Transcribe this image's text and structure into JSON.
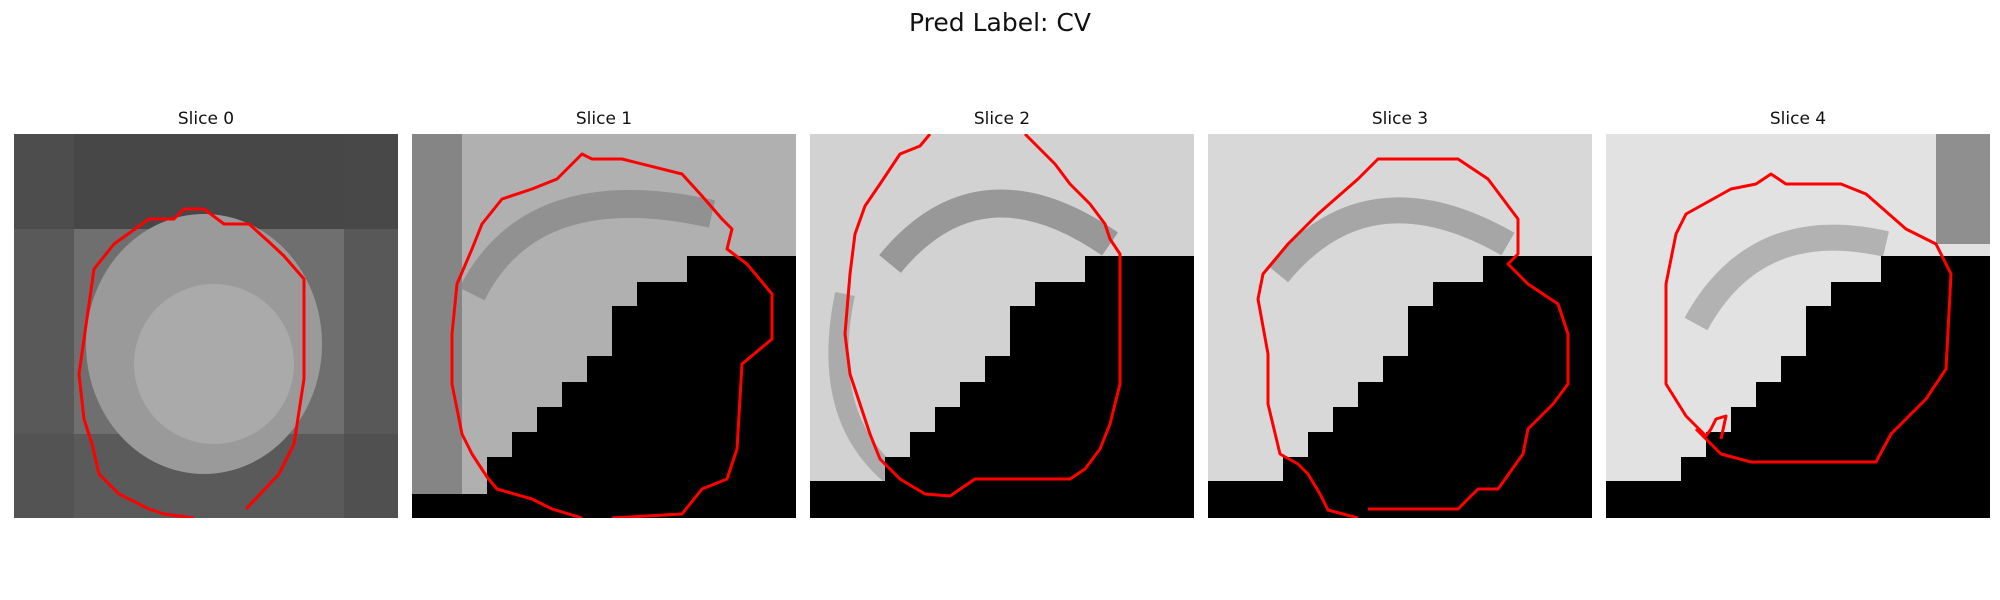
{
  "figure": {
    "title": "Pred Label: CV"
  },
  "panels": [
    {
      "title": "Slice 0",
      "fill": "#8e8e8e",
      "stroke": "#ff0000"
    },
    {
      "title": "Slice 1",
      "fill": "#b0b0b0",
      "stroke": "#ff0000"
    },
    {
      "title": "Slice 2",
      "fill": "#d2d2d2",
      "stroke": "#ff0000"
    },
    {
      "title": "Slice 3",
      "fill": "#d8d8d8",
      "stroke": "#ff0000"
    },
    {
      "title": "Slice 4",
      "fill": "#e2e2e2",
      "stroke": "#ff0000"
    }
  ]
}
